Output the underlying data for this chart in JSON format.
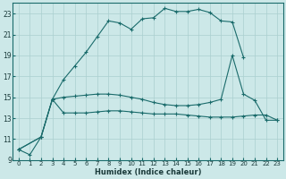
{
  "title": "",
  "xlabel": "Humidex (Indice chaleur)",
  "bg_color": "#cce8e8",
  "line_color": "#1a6b6b",
  "grid_color": "#aacfcf",
  "xlim": [
    -0.5,
    23.5
  ],
  "ylim": [
    9,
    24
  ],
  "yticks": [
    9,
    11,
    13,
    15,
    17,
    19,
    21,
    23
  ],
  "xticks": [
    0,
    1,
    2,
    3,
    4,
    5,
    6,
    7,
    8,
    9,
    10,
    11,
    12,
    13,
    14,
    15,
    16,
    17,
    18,
    19,
    20,
    21,
    22,
    23
  ],
  "curve1_x": [
    0,
    1,
    2,
    3,
    4,
    5,
    6,
    7,
    8,
    9,
    10,
    11,
    12,
    13,
    14,
    15,
    16,
    17,
    18,
    19,
    20
  ],
  "curve1_y": [
    10.0,
    9.5,
    11.2,
    14.8,
    16.7,
    18.0,
    19.3,
    20.8,
    22.3,
    22.1,
    21.5,
    22.5,
    22.6,
    23.5,
    23.2,
    23.2,
    23.4,
    23.1,
    22.3,
    22.2,
    18.8
  ],
  "curve2_x": [
    0,
    2,
    3,
    4,
    5,
    6,
    7,
    8,
    9,
    10,
    11,
    12,
    13,
    14,
    15,
    16,
    17,
    18,
    19,
    20,
    21,
    22,
    23
  ],
  "curve2_y": [
    10.0,
    11.2,
    14.8,
    15.0,
    15.1,
    15.2,
    15.3,
    15.3,
    15.2,
    15.0,
    14.8,
    14.5,
    14.3,
    14.2,
    14.2,
    14.3,
    14.5,
    14.8,
    19.0,
    15.3,
    14.7,
    12.8,
    12.8
  ],
  "curve3_x": [
    0,
    2,
    3,
    4,
    5,
    6,
    7,
    8,
    9,
    10,
    11,
    12,
    13,
    14,
    15,
    16,
    17,
    18,
    19,
    20,
    21,
    22,
    23
  ],
  "curve3_y": [
    10.0,
    11.2,
    14.8,
    13.5,
    13.5,
    13.5,
    13.6,
    13.7,
    13.7,
    13.6,
    13.5,
    13.4,
    13.4,
    13.4,
    13.3,
    13.2,
    13.1,
    13.1,
    13.1,
    13.2,
    13.3,
    13.3,
    12.8
  ]
}
